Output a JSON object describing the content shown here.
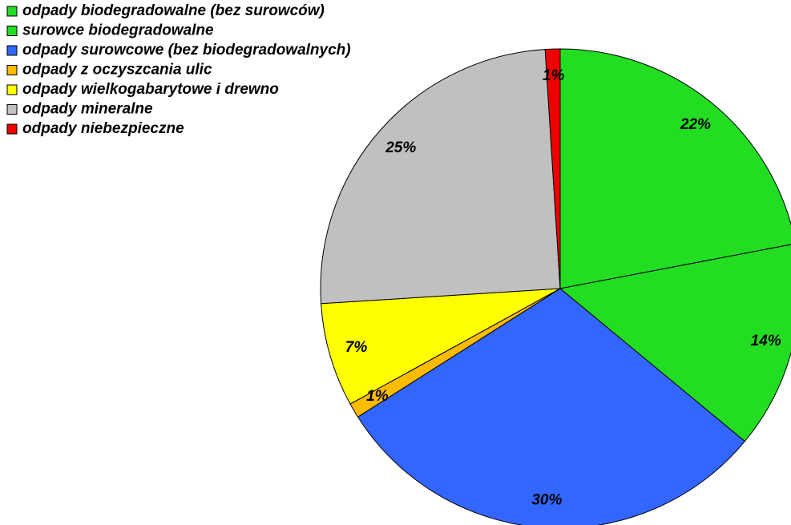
{
  "chart_data": {
    "type": "pie",
    "categories": [
      "odpady biodegradowalne (bez surowców)",
      "surowce biodegradowalne",
      "odpady surowcowe (bez biodegradowalnych)",
      "odpady z oczyszcania ulic",
      "odpady wielkogabarytowe i drewno",
      "odpady mineralne",
      "odpady niebezpieczne"
    ],
    "values": [
      22,
      14,
      30,
      1,
      7,
      25,
      1
    ],
    "value_labels": [
      "22%",
      "14%",
      "30%",
      "1%",
      "7%",
      "25%",
      "1%"
    ],
    "colors": [
      "#22dd22",
      "#22dd22",
      "#3366ff",
      "#ffbb00",
      "#ffff00",
      "#c0c0c0",
      "#ee0000"
    ],
    "legend": "top-left"
  }
}
